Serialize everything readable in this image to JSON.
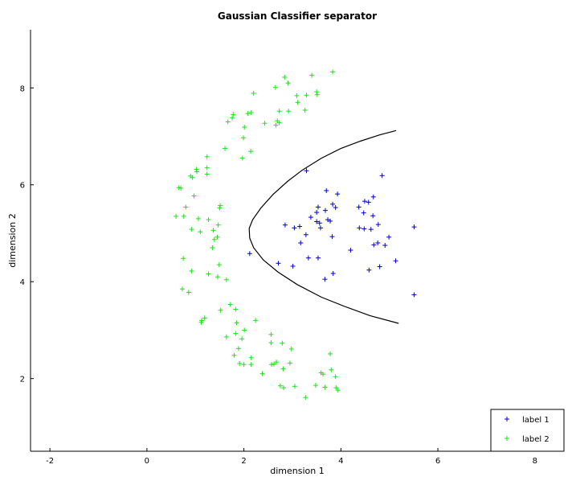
{
  "chart_data": {
    "type": "scatter",
    "title": "Gaussian Classifier separator",
    "xlabel": "dimension 1",
    "ylabel": "dimension 2",
    "xlim": [
      -2.4,
      8.6
    ],
    "ylim": [
      0.5,
      9.2
    ],
    "xticks": [
      -2,
      0,
      2,
      4,
      6,
      8
    ],
    "yticks": [
      2,
      4,
      6,
      8
    ],
    "grid": false,
    "legend_placement": "bottom-right",
    "series": [
      {
        "name": "label 1",
        "color": "#0000cc",
        "marker": "plus",
        "points": [
          [
            3.29,
            6.29
          ],
          [
            4.85,
            6.19
          ],
          [
            3.7,
            5.88
          ],
          [
            3.93,
            5.81
          ],
          [
            4.67,
            5.75
          ],
          [
            4.49,
            5.66
          ],
          [
            4.57,
            5.64
          ],
          [
            3.83,
            5.6
          ],
          [
            4.37,
            5.54
          ],
          [
            3.53,
            5.54
          ],
          [
            3.89,
            5.53
          ],
          [
            3.68,
            5.47
          ],
          [
            3.5,
            5.43
          ],
          [
            4.47,
            5.42
          ],
          [
            4.66,
            5.36
          ],
          [
            3.38,
            5.33
          ],
          [
            3.73,
            5.28
          ],
          [
            3.5,
            5.24
          ],
          [
            3.56,
            5.21
          ],
          [
            3.78,
            5.25
          ],
          [
            4.77,
            5.18
          ],
          [
            2.85,
            5.17
          ],
          [
            3.15,
            5.14
          ],
          [
            3.04,
            5.11
          ],
          [
            3.58,
            5.11
          ],
          [
            4.38,
            5.11
          ],
          [
            4.48,
            5.09
          ],
          [
            4.62,
            5.08
          ],
          [
            5.51,
            5.13
          ],
          [
            3.28,
            4.97
          ],
          [
            3.82,
            4.93
          ],
          [
            4.99,
            4.92
          ],
          [
            4.76,
            4.8
          ],
          [
            4.68,
            4.76
          ],
          [
            4.91,
            4.75
          ],
          [
            3.17,
            4.8
          ],
          [
            4.2,
            4.65
          ],
          [
            2.12,
            4.58
          ],
          [
            3.33,
            4.49
          ],
          [
            3.53,
            4.49
          ],
          [
            5.13,
            4.43
          ],
          [
            2.71,
            4.38
          ],
          [
            3.01,
            4.32
          ],
          [
            4.8,
            4.31
          ],
          [
            4.58,
            4.24
          ],
          [
            3.84,
            4.17
          ],
          [
            3.67,
            4.05
          ],
          [
            5.51,
            3.73
          ]
        ]
      },
      {
        "name": "label 2",
        "color": "#22dd22",
        "marker": "plus",
        "points": [
          [
            3.83,
            8.33
          ],
          [
            3.4,
            8.26
          ],
          [
            2.84,
            8.22
          ],
          [
            2.91,
            8.1
          ],
          [
            2.65,
            8.01
          ],
          [
            3.5,
            7.92
          ],
          [
            2.2,
            7.89
          ],
          [
            3.51,
            7.86
          ],
          [
            3.29,
            7.85
          ],
          [
            3.09,
            7.84
          ],
          [
            3.11,
            7.7
          ],
          [
            2.73,
            7.52
          ],
          [
            2.92,
            7.52
          ],
          [
            3.26,
            7.54
          ],
          [
            2.15,
            7.49
          ],
          [
            2.08,
            7.47
          ],
          [
            1.78,
            7.45
          ],
          [
            1.76,
            7.38
          ],
          [
            1.67,
            7.3
          ],
          [
            2.69,
            7.32
          ],
          [
            2.73,
            7.28
          ],
          [
            2.43,
            7.27
          ],
          [
            2.66,
            7.23
          ],
          [
            2.01,
            7.19
          ],
          [
            1.99,
            6.97
          ],
          [
            1.61,
            6.75
          ],
          [
            2.14,
            6.69
          ],
          [
            1.24,
            6.58
          ],
          [
            1.97,
            6.55
          ],
          [
            1.24,
            6.35
          ],
          [
            1.02,
            6.32
          ],
          [
            1.03,
            6.27
          ],
          [
            1.24,
            6.22
          ],
          [
            0.9,
            6.18
          ],
          [
            0.94,
            6.15
          ],
          [
            0.66,
            5.94
          ],
          [
            0.7,
            5.93
          ],
          [
            0.97,
            5.77
          ],
          [
            0.8,
            5.54
          ],
          [
            1.51,
            5.57
          ],
          [
            1.5,
            5.52
          ],
          [
            0.6,
            5.35
          ],
          [
            0.76,
            5.35
          ],
          [
            1.06,
            5.3
          ],
          [
            1.27,
            5.28
          ],
          [
            1.47,
            5.17
          ],
          [
            0.92,
            5.08
          ],
          [
            1.37,
            5.06
          ],
          [
            1.1,
            5.03
          ],
          [
            1.45,
            4.92
          ],
          [
            1.39,
            4.87
          ],
          [
            1.35,
            4.7
          ],
          [
            0.75,
            4.48
          ],
          [
            1.49,
            4.35
          ],
          [
            0.92,
            4.22
          ],
          [
            1.27,
            4.16
          ],
          [
            1.46,
            4.1
          ],
          [
            1.64,
            4.04
          ],
          [
            0.73,
            3.85
          ],
          [
            0.86,
            3.78
          ],
          [
            1.72,
            3.53
          ],
          [
            1.83,
            3.43
          ],
          [
            1.52,
            3.41
          ],
          [
            1.19,
            3.25
          ],
          [
            1.13,
            3.2
          ],
          [
            1.12,
            3.16
          ],
          [
            2.24,
            3.2
          ],
          [
            1.85,
            3.15
          ],
          [
            2.01,
            3.0
          ],
          [
            1.83,
            2.93
          ],
          [
            2.56,
            2.91
          ],
          [
            1.64,
            2.86
          ],
          [
            1.96,
            2.82
          ],
          [
            2.56,
            2.74
          ],
          [
            2.79,
            2.73
          ],
          [
            2.98,
            2.61
          ],
          [
            1.89,
            2.62
          ],
          [
            1.8,
            2.48
          ],
          [
            2.15,
            2.43
          ],
          [
            3.78,
            2.51
          ],
          [
            2.67,
            2.34
          ],
          [
            2.62,
            2.3
          ],
          [
            2.57,
            2.29
          ],
          [
            1.91,
            2.31
          ],
          [
            2.0,
            2.29
          ],
          [
            2.15,
            2.29
          ],
          [
            2.95,
            2.32
          ],
          [
            3.8,
            2.18
          ],
          [
            2.81,
            2.2
          ],
          [
            2.38,
            2.1
          ],
          [
            3.63,
            2.09
          ],
          [
            3.59,
            2.12
          ],
          [
            3.89,
            2.04
          ],
          [
            3.48,
            1.86
          ],
          [
            3.05,
            1.84
          ],
          [
            2.75,
            1.85
          ],
          [
            2.82,
            1.81
          ],
          [
            3.9,
            1.81
          ],
          [
            3.94,
            1.76
          ],
          [
            3.67,
            1.82
          ],
          [
            3.27,
            1.61
          ]
        ]
      },
      {
        "name": "",
        "type": "line",
        "color": "#000000",
        "points": [
          [
            5.14,
            7.12
          ],
          [
            4.8,
            7.03
          ],
          [
            4.4,
            6.9
          ],
          [
            4.0,
            6.75
          ],
          [
            3.6,
            6.55
          ],
          [
            3.2,
            6.3
          ],
          [
            2.9,
            6.07
          ],
          [
            2.6,
            5.8
          ],
          [
            2.35,
            5.52
          ],
          [
            2.18,
            5.28
          ],
          [
            2.11,
            5.1
          ],
          [
            2.12,
            4.9
          ],
          [
            2.2,
            4.7
          ],
          [
            2.4,
            4.45
          ],
          [
            2.7,
            4.2
          ],
          [
            3.1,
            3.94
          ],
          [
            3.6,
            3.68
          ],
          [
            4.1,
            3.48
          ],
          [
            4.6,
            3.3
          ],
          [
            5.19,
            3.14
          ]
        ]
      }
    ]
  }
}
